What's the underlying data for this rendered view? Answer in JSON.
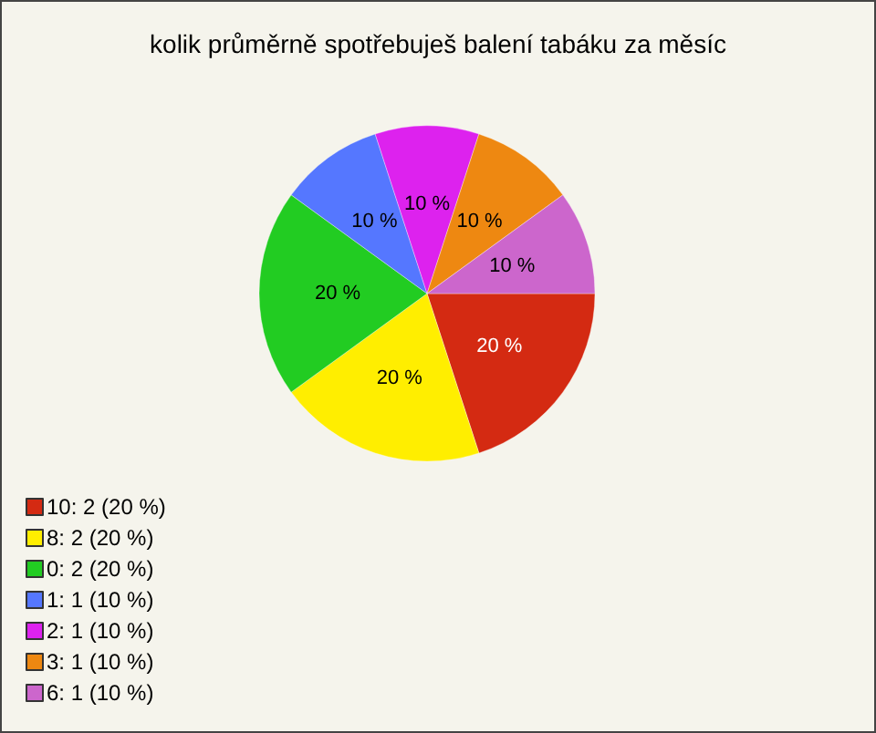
{
  "chart_data": {
    "type": "pie",
    "title": "kolik průměrně spotřebuješ balení tabáku za měsíc",
    "categories": [
      "10: 2 (20 %)",
      "8: 2 (20 %)",
      "0: 2 (20 %)",
      "1: 1 (10 %)",
      "2: 1 (10 %)",
      "3: 1 (10 %)",
      "6: 1 (10 %)"
    ],
    "values": [
      20,
      20,
      20,
      10,
      10,
      10,
      10
    ],
    "value_labels": [
      "20 %",
      "20 %",
      "20 %",
      "10 %",
      "10 %",
      "10 %",
      "10 %"
    ],
    "colors": [
      "#d42a12",
      "#ffee00",
      "#22cc22",
      "#5577ff",
      "#dd22ee",
      "#ee8811",
      "#cc66cc"
    ],
    "legend": "bottom left"
  }
}
